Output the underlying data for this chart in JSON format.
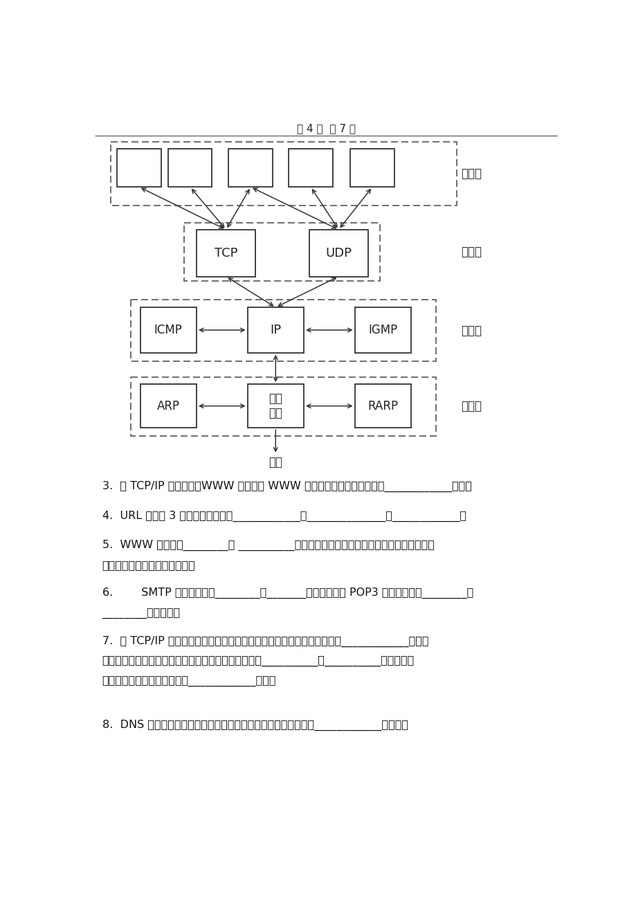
{
  "page_header": "第 4 页  共 7 页",
  "background_color": "#ffffff",
  "diagram": {
    "app_layer_label": "应用层",
    "transport_layer_label": "运输层",
    "network_layer_label": "网络层",
    "link_layer_label": "链路层",
    "media_label": "媒体"
  },
  "questions": [
    "3.  在 TCP/IP 互联网中，WWW 服务器与 WWW 浏览器之间的信息传递使用____________协议。",
    "4.  URL 一般由 3 部分组成，它们是____________、______________和____________。",
    "5.  WWW 服务通过________和 __________两种技术为基础，为用户提供界面一致的信息浏",
    "览系统，实现各种信息的链接。",
    "6.        SMTP 服务器通常在________的_______端口守侯，而 POP3 服务器通常在________的",
    "________端口守侯。",
    "7.  在 TCP/IP 互联网中，电子邮件客户端程序向邮件服务器发送邮件使用____________协议，",
    "电子邮件客户端程序查看邮件服务器中自己的邮箱使用__________或__________协议，邮件",
    "服务器之间相互传递邮件使用____________协议。",
    "8.  DNS 实际上是一个服务器软件，运行在指定的计算机上，完成____________的映射。"
  ]
}
